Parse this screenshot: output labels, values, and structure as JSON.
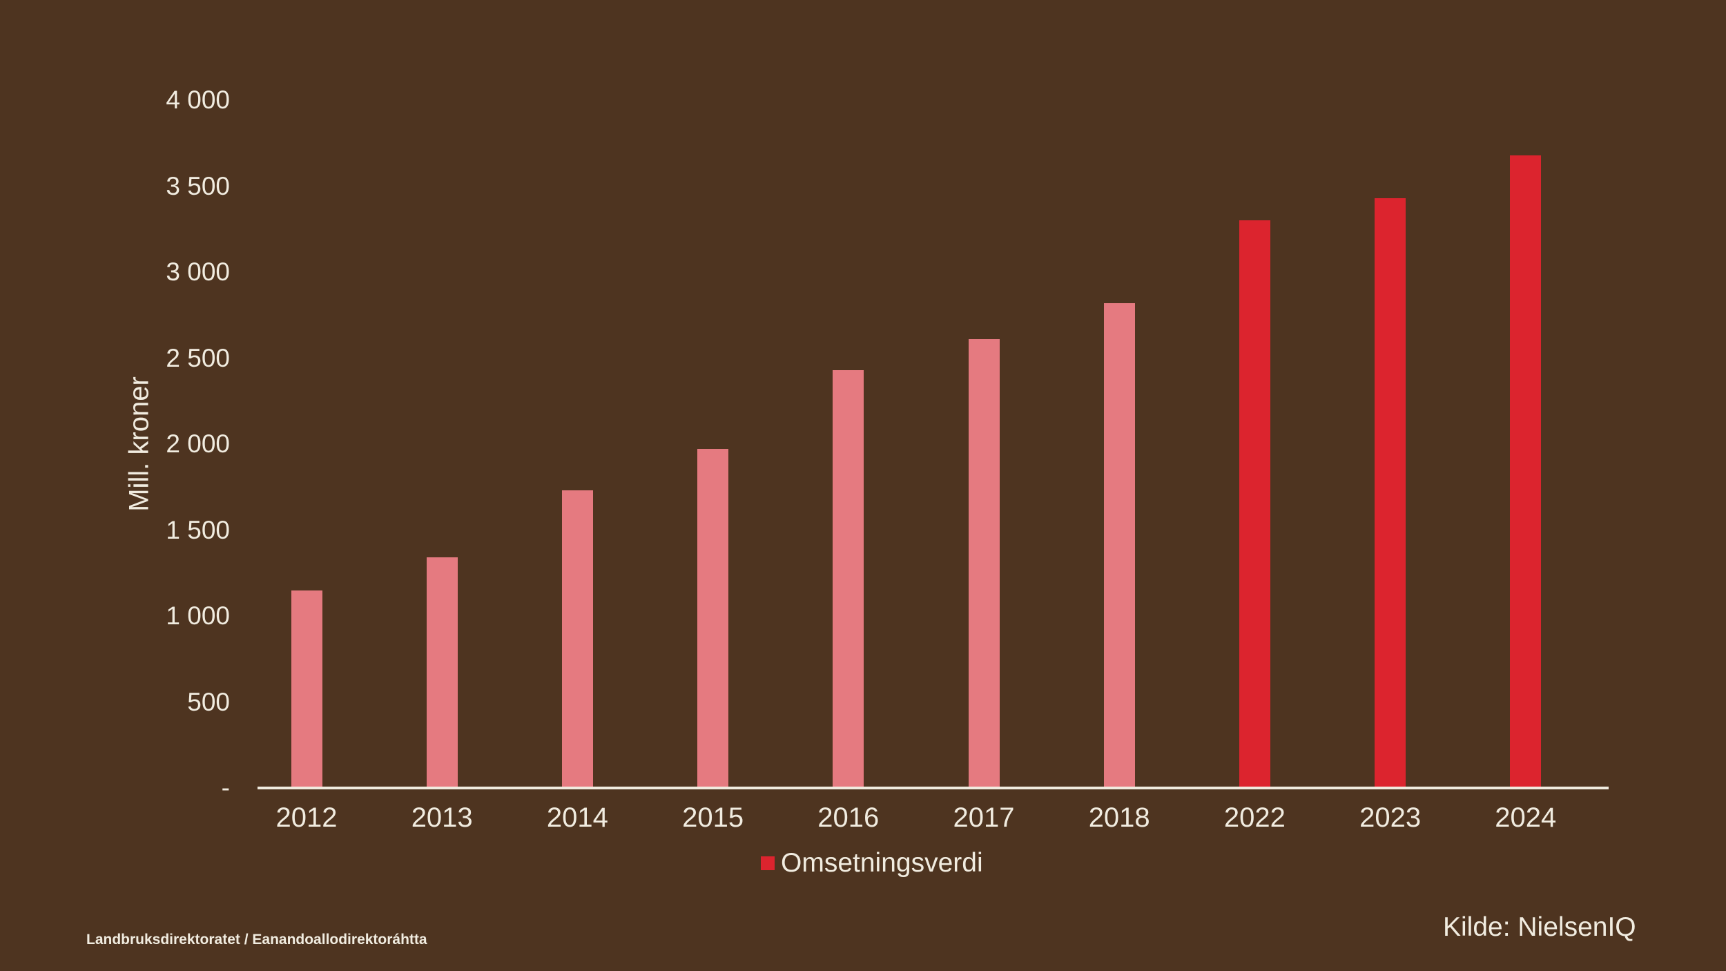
{
  "chart_data": {
    "type": "bar",
    "title": "",
    "ylabel": "Mill. kroner",
    "xlabel": "",
    "categories": [
      "2012",
      "2013",
      "2014",
      "2015",
      "2016",
      "2017",
      "2018",
      "2022",
      "2023",
      "2024"
    ],
    "series": [
      {
        "name": "Omsetningsverdi",
        "values": [
          1150,
          1340,
          1730,
          1970,
          2430,
          2610,
          2820,
          3300,
          3430,
          3680
        ]
      }
    ],
    "bar_color_keys": [
      "pink",
      "pink",
      "pink",
      "pink",
      "pink",
      "pink",
      "pink",
      "red",
      "red",
      "red"
    ],
    "ylim": [
      0,
      4000
    ],
    "y_ticks": [
      {
        "value": 4000,
        "label": "4 000"
      },
      {
        "value": 3500,
        "label": "3 500"
      },
      {
        "value": 3000,
        "label": "3 000"
      },
      {
        "value": 2500,
        "label": "2 500"
      },
      {
        "value": 2000,
        "label": "2 000"
      },
      {
        "value": 1500,
        "label": "1 500"
      },
      {
        "value": 1000,
        "label": "1 000"
      },
      {
        "value": 500,
        "label": "500"
      },
      {
        "value": 0,
        "label": "-"
      }
    ],
    "grid": false,
    "legend": {
      "label": "Omsetningsverdi",
      "position": "bottom"
    }
  },
  "colors": {
    "background": "#4E3420",
    "bar_pink": "#E57A80",
    "bar_red": "#DC242E",
    "text": "#F1ECE0",
    "axis_line": "#F0EBDF",
    "legend_marker": "#DC242E"
  },
  "footer": {
    "left": "Landbruksdirektoratet / Eanandoallodirektoráhtta",
    "source": "Kilde: NielsenIQ"
  }
}
